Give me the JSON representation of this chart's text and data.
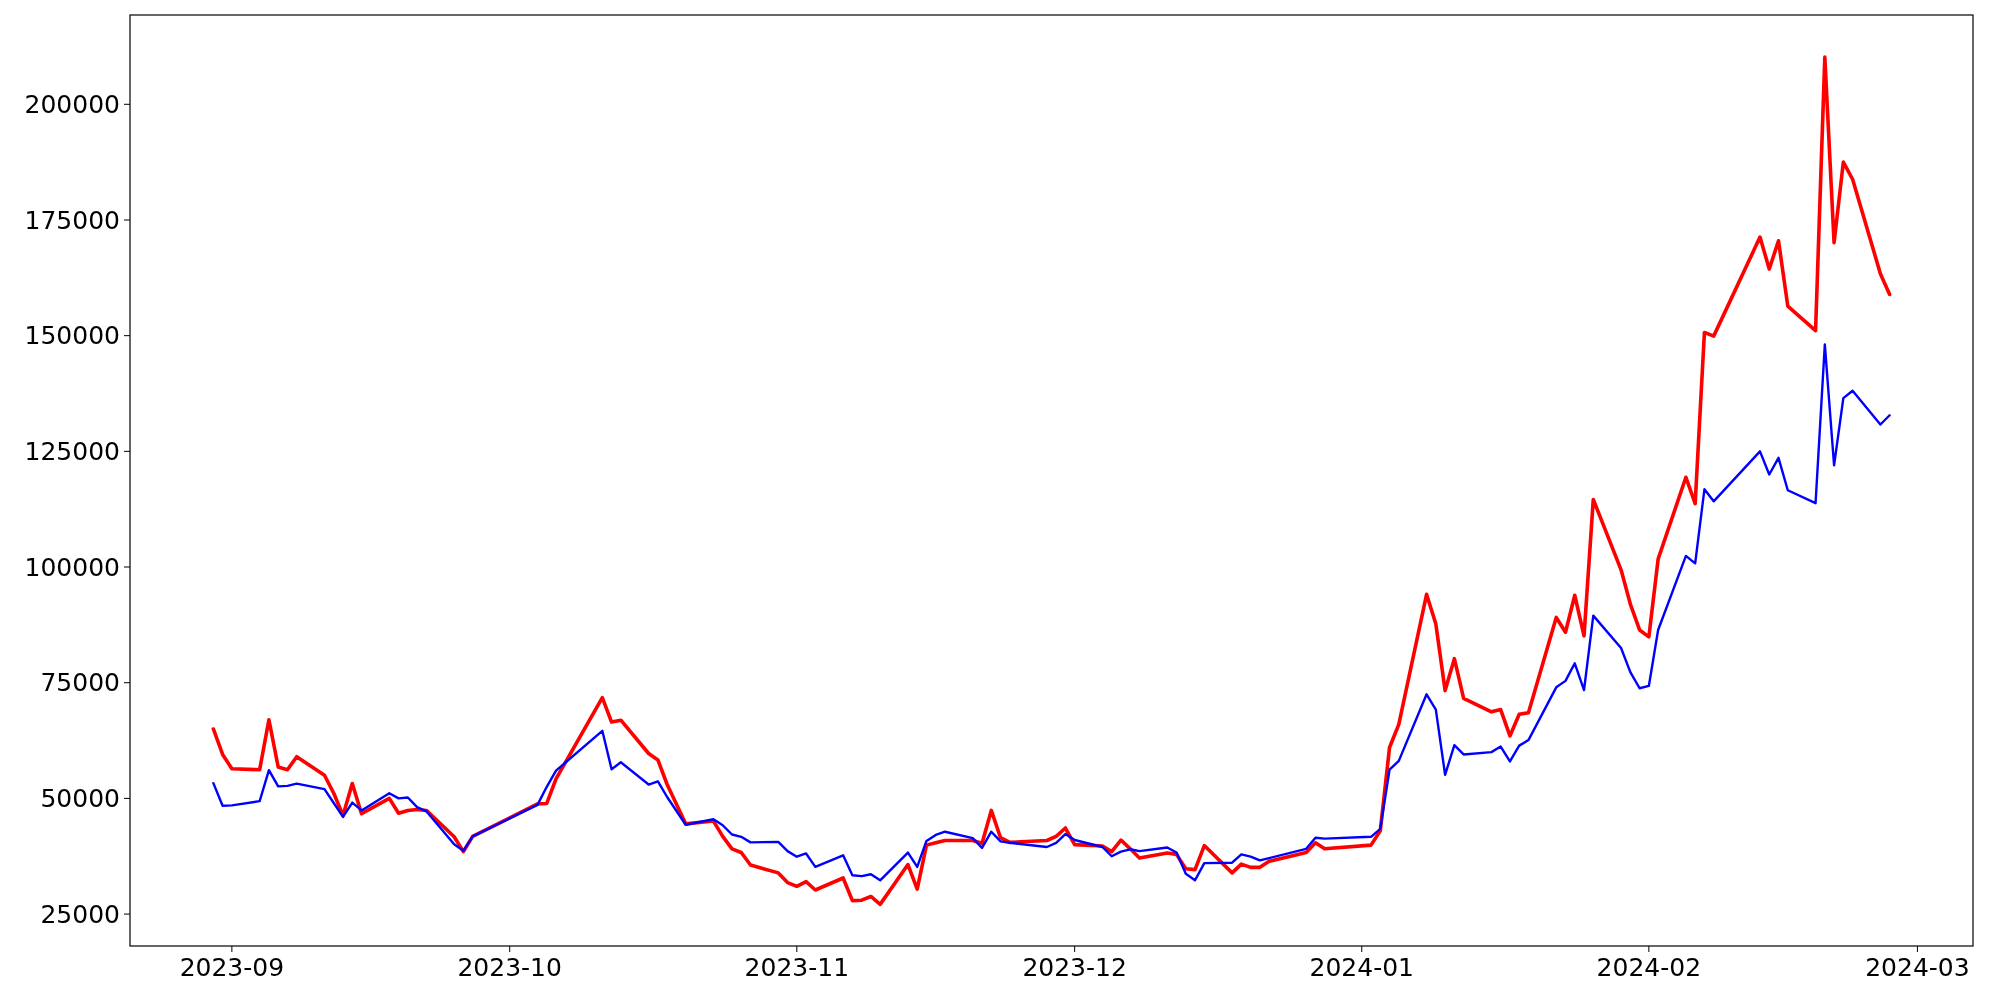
{
  "chart_data": {
    "type": "line",
    "x": [
      "2023-08-30",
      "2023-08-31",
      "2023-09-01",
      "2023-09-04",
      "2023-09-05",
      "2023-09-06",
      "2023-09-07",
      "2023-09-08",
      "2023-09-11",
      "2023-09-12",
      "2023-09-13",
      "2023-09-14",
      "2023-09-15",
      "2023-09-18",
      "2023-09-19",
      "2023-09-20",
      "2023-09-21",
      "2023-09-22",
      "2023-09-25",
      "2023-09-26",
      "2023-09-27",
      "2023-10-04",
      "2023-10-05",
      "2023-10-06",
      "2023-10-11",
      "2023-10-12",
      "2023-10-13",
      "2023-10-16",
      "2023-10-17",
      "2023-10-18",
      "2023-10-20",
      "2023-10-23",
      "2023-10-24",
      "2023-10-25",
      "2023-10-26",
      "2023-10-27",
      "2023-10-30",
      "2023-10-31",
      "2023-11-01",
      "2023-11-02",
      "2023-11-03",
      "2023-11-06",
      "2023-11-07",
      "2023-11-08",
      "2023-11-09",
      "2023-11-10",
      "2023-11-13",
      "2023-11-14",
      "2023-11-15",
      "2023-11-16",
      "2023-11-17",
      "2023-11-20",
      "2023-11-21",
      "2023-11-22",
      "2023-11-23",
      "2023-11-24",
      "2023-11-28",
      "2023-11-29",
      "2023-11-30",
      "2023-12-01",
      "2023-12-04",
      "2023-12-05",
      "2023-12-06",
      "2023-12-07",
      "2023-12-08",
      "2023-12-11",
      "2023-12-12",
      "2023-12-13",
      "2023-12-14",
      "2023-12-15",
      "2023-12-18",
      "2023-12-19",
      "2023-12-20",
      "2023-12-21",
      "2023-12-22",
      "2023-12-26",
      "2023-12-27",
      "2023-12-28",
      "2024-01-02",
      "2024-01-03",
      "2024-01-04",
      "2024-01-05",
      "2024-01-08",
      "2024-01-09",
      "2024-01-10",
      "2024-01-11",
      "2024-01-12",
      "2024-01-15",
      "2024-01-16",
      "2024-01-17",
      "2024-01-18",
      "2024-01-19",
      "2024-01-22",
      "2024-01-23",
      "2024-01-24",
      "2024-01-25",
      "2024-01-26",
      "2024-01-29",
      "2024-01-30",
      "2024-01-31",
      "2024-02-01",
      "2024-02-02",
      "2024-02-05",
      "2024-02-06",
      "2024-02-07",
      "2024-02-08",
      "2024-02-13",
      "2024-02-14",
      "2024-02-15",
      "2024-02-16",
      "2024-02-19",
      "2024-02-20",
      "2024-02-21",
      "2024-02-22",
      "2024-02-23",
      "2024-02-26",
      "2024-02-27"
    ],
    "series": [
      {
        "color": "#ff0000",
        "values": [
          65000,
          59500,
          56400,
          56200,
          67000,
          56800,
          56200,
          59000,
          55000,
          51100,
          46300,
          53200,
          46700,
          50000,
          46800,
          47400,
          47600,
          47400,
          41700,
          38500,
          41800,
          48800,
          48900,
          54200,
          71800,
          66500,
          66900,
          59700,
          58300,
          53000,
          44500,
          45100,
          41800,
          39100,
          38300,
          35600,
          33900,
          31800,
          31000,
          32000,
          30200,
          32800,
          27900,
          28000,
          28800,
          27100,
          35700,
          30400,
          39900,
          40400,
          40900,
          40900,
          40300,
          47400,
          41500,
          40500,
          40900,
          41800,
          43600,
          40000,
          39700,
          38500,
          41000,
          39100,
          37100,
          38200,
          37900,
          34800,
          34600,
          39800,
          33900,
          35800,
          35100,
          35100,
          36400,
          38300,
          40400,
          39100,
          39900,
          43000,
          61000,
          66000,
          94100,
          87700,
          73300,
          80200,
          71600,
          68700,
          69200,
          63500,
          68200,
          68500,
          89100,
          85900,
          93900,
          85100,
          114600,
          99400,
          92000,
          86400,
          84900,
          101700,
          119400,
          113700,
          150700,
          149900,
          171300,
          164400,
          170500,
          156400,
          151100,
          210200,
          170100,
          187500,
          183800,
          163400,
          158900
        ]
      },
      {
        "color": "#0000ff",
        "values": [
          53300,
          48400,
          48500,
          49400,
          56100,
          52600,
          52700,
          53200,
          52000,
          49000,
          46000,
          49100,
          47400,
          51100,
          50000,
          50200,
          48100,
          47200,
          40100,
          38700,
          41800,
          48600,
          52500,
          56000,
          64600,
          56300,
          57800,
          53000,
          53700,
          50300,
          44300,
          45500,
          44200,
          42200,
          41700,
          40500,
          40600,
          38600,
          37400,
          38100,
          35200,
          37700,
          33400,
          33200,
          33600,
          32300,
          38300,
          35200,
          40800,
          42100,
          42800,
          41400,
          39300,
          42800,
          40700,
          40400,
          39500,
          40400,
          42300,
          41000,
          39500,
          37500,
          38500,
          39000,
          38600,
          39400,
          38300,
          33700,
          32300,
          36000,
          36100,
          37900,
          37400,
          36600,
          37100,
          39100,
          41500,
          41300,
          41700,
          43400,
          56200,
          58100,
          72500,
          69200,
          55100,
          61500,
          59500,
          60000,
          61200,
          58000,
          61400,
          62600,
          74000,
          75400,
          79200,
          73400,
          89500,
          82500,
          77300,
          73800,
          74300,
          86400,
          102400,
          100800,
          116800,
          114200,
          125000,
          120000,
          123600,
          116600,
          113800,
          148100,
          122000,
          136500,
          138100,
          130800,
          132800
        ]
      }
    ],
    "xlim": [
      "2023-08-21",
      "2024-03-07"
    ],
    "xticks": [
      "2023-09",
      "2023-10",
      "2023-11",
      "2023-12",
      "2024-01",
      "2024-02",
      "2024-03"
    ],
    "ylim": [
      18100,
      219300
    ],
    "yticks": [
      25000,
      50000,
      75000,
      100000,
      125000,
      150000,
      175000,
      200000
    ]
  }
}
